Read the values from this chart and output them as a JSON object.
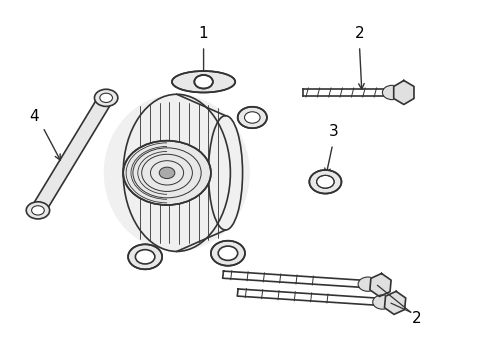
{
  "background_color": "#ffffff",
  "line_color": "#333333",
  "label_color": "#000000",
  "fig_width": 4.9,
  "fig_height": 3.6,
  "dpi": 100,
  "label_fontsize": 11,
  "arrow_color": "#333333"
}
